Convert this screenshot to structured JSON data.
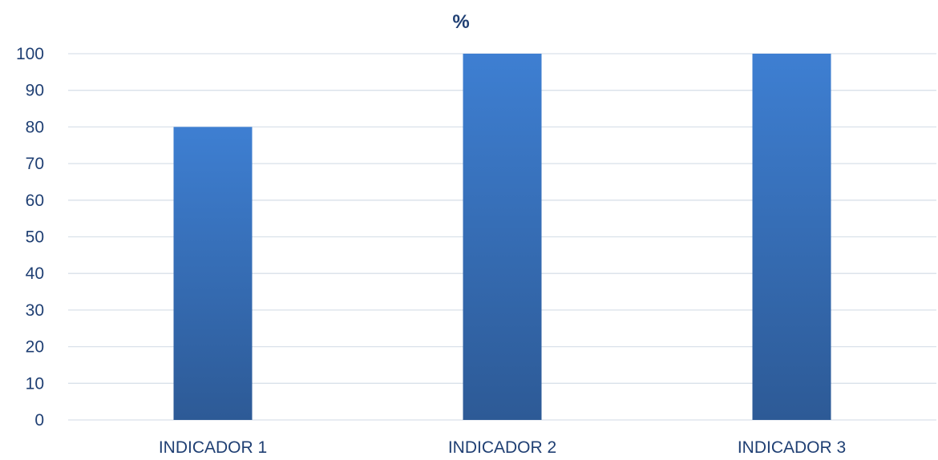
{
  "chart_data": {
    "type": "bar",
    "title": "%",
    "categories": [
      "INDICADOR 1",
      "INDICADOR 2",
      "INDICADOR 3"
    ],
    "values": [
      80,
      100,
      100
    ],
    "yticks": [
      "0",
      "10",
      "20",
      "30",
      "40",
      "50",
      "60",
      "70",
      "80",
      "90",
      "100"
    ],
    "ylim": [
      0,
      100
    ],
    "xlabel": "",
    "ylabel": "",
    "grid": true,
    "legend": false,
    "colors": {
      "bar_top": "#3e7fd2",
      "bar_bottom": "#2d5a96",
      "text": "#1f3f73",
      "grid": "#d9e1ea"
    }
  }
}
